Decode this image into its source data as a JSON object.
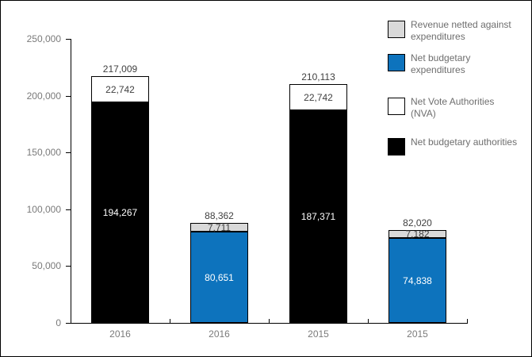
{
  "colors": {
    "background": "#ffffff",
    "axis": "#000000",
    "axis_label_text": "#7a7a7a",
    "total_label_text": "#404040",
    "legend_text": "#6e6e6e",
    "series_blue": "#0d73bd",
    "series_gray": "#d9d9d9",
    "series_white": "#ffffff",
    "series_black": "#000000"
  },
  "chart_data": {
    "type": "bar",
    "stacked": true,
    "grid": false,
    "legend_position": "right",
    "categories": [
      "2016",
      "2016",
      "2015",
      "2015"
    ],
    "y_axis": {
      "min": 0,
      "max": 250000,
      "tick_step": 50000,
      "tick_labels": [
        "0",
        "50,000",
        "100,000",
        "150,000",
        "200,000",
        "250,000"
      ]
    },
    "series_styles": {
      "Revenue netted against expenditures": {
        "fill": "#d9d9d9",
        "text": "#404040"
      },
      "Net budgetary expenditures": {
        "fill": "#0d73bd",
        "text": "#ffffff"
      },
      "Net Vote Authorities (NVA)": {
        "fill": "#ffffff",
        "text": "#404040"
      },
      "Net budgetary authorities": {
        "fill": "#000000",
        "text": "#ffffff"
      }
    },
    "bars": [
      {
        "category": "2016",
        "total": 217009,
        "total_label": "217,009",
        "segments": [
          {
            "series": "Net budgetary authorities",
            "value": 194267,
            "label": "194,267"
          },
          {
            "series": "Net Vote Authorities (NVA)",
            "value": 22742,
            "label": "22,742"
          }
        ]
      },
      {
        "category": "2016",
        "total": 88362,
        "total_label": "88,362",
        "segments": [
          {
            "series": "Net budgetary expenditures",
            "value": 80651,
            "label": "80,651"
          },
          {
            "series": "Revenue netted against expenditures",
            "value": 7711,
            "label": "7,711"
          }
        ]
      },
      {
        "category": "2015",
        "total": 210113,
        "total_label": "210,113",
        "segments": [
          {
            "series": "Net budgetary authorities",
            "value": 187371,
            "label": "187,371"
          },
          {
            "series": "Net Vote Authorities (NVA)",
            "value": 22742,
            "label": "22,742"
          }
        ]
      },
      {
        "category": "2015",
        "total": 82020,
        "total_label": "82,020",
        "segments": [
          {
            "series": "Net budgetary expenditures",
            "value": 74838,
            "label": "74,838"
          },
          {
            "series": "Revenue netted against expenditures",
            "value": 7182,
            "label": "7,182"
          }
        ]
      }
    ],
    "legend": [
      {
        "series": "Revenue netted against expenditures",
        "label": "Revenue netted against expenditures"
      },
      {
        "series": "Net budgetary expenditures",
        "label": "Net budgetary expenditures"
      },
      {
        "series": "Net Vote Authorities (NVA)",
        "label": "Net Vote Authorities (NVA)"
      },
      {
        "series": "Net budgetary authorities",
        "label": "Net budgetary authorities"
      }
    ]
  }
}
